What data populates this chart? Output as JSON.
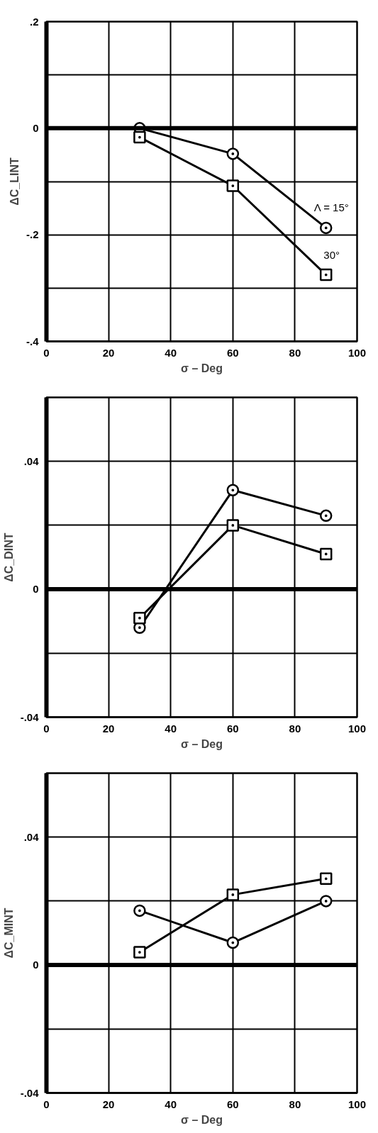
{
  "chart_data": [
    {
      "type": "line",
      "xlabel": "σ – Deg",
      "ylabel": "ΔC_LINT",
      "x": [
        30,
        60,
        90
      ],
      "xlim": [
        0,
        100
      ],
      "xticks": [
        0,
        20,
        40,
        60,
        80,
        100
      ],
      "ylim": [
        -0.4,
        0.2
      ],
      "yticks": [
        {
          "value": 0.2,
          "label": ".2"
        },
        {
          "value": 0.1,
          "label": null
        },
        0,
        {
          "value": -0.1,
          "label": null
        },
        {
          "value": -0.2,
          "label": "-.2"
        },
        {
          "value": -0.3,
          "label": null
        },
        {
          "value": -0.4,
          "label": "-.4"
        }
      ],
      "grid": true,
      "line_style": "solid",
      "series": [
        {
          "name": "Λ = 15°",
          "color": "#000000",
          "marker": "circle",
          "values": [
            0.0,
            -0.048,
            -0.187
          ]
        },
        {
          "name": "30°",
          "color": "#000000",
          "marker": "square",
          "values": [
            -0.017,
            -0.108,
            -0.275
          ]
        }
      ],
      "ref_lines": [
        {
          "axis": "y",
          "value": 0,
          "color": "#000000"
        }
      ]
    },
    {
      "type": "line",
      "xlabel": "σ – Deg",
      "ylabel": "ΔC_DINT",
      "x": [
        30,
        60,
        90
      ],
      "xlim": [
        0,
        100
      ],
      "xticks": [
        0,
        20,
        40,
        60,
        80,
        100
      ],
      "ylim": [
        -0.04,
        0.06
      ],
      "yticks": [
        {
          "value": 0.06,
          "label": null
        },
        {
          "value": 0.04,
          "label": ".04"
        },
        {
          "value": 0.02,
          "label": null
        },
        0,
        {
          "value": -0.02,
          "label": null
        },
        {
          "value": -0.04,
          "label": "-.04"
        }
      ],
      "grid": true,
      "line_style": "solid",
      "series": [
        {
          "color": "#000000",
          "marker": "circle",
          "values": [
            -0.012,
            0.031,
            0.023
          ]
        },
        {
          "color": "#000000",
          "marker": "square",
          "values": [
            -0.009,
            0.02,
            0.011
          ]
        }
      ],
      "ref_lines": [
        {
          "axis": "y",
          "value": 0,
          "color": "#000000"
        }
      ]
    },
    {
      "type": "line",
      "xlabel": "σ – Deg",
      "ylabel": "ΔC_MINT",
      "x": [
        30,
        60,
        90
      ],
      "xlim": [
        0,
        100
      ],
      "xticks": [
        0,
        20,
        40,
        60,
        80,
        100
      ],
      "ylim": [
        -0.04,
        0.06
      ],
      "yticks": [
        {
          "value": 0.06,
          "label": null
        },
        {
          "value": 0.04,
          "label": ".04"
        },
        {
          "value": 0.02,
          "label": null
        },
        0,
        {
          "value": -0.02,
          "label": null
        },
        {
          "value": -0.04,
          "label": "-.04"
        }
      ],
      "grid": true,
      "line_style": "solid",
      "series": [
        {
          "color": "#000000",
          "marker": "circle",
          "values": [
            0.017,
            0.007,
            0.02
          ]
        },
        {
          "color": "#000000",
          "marker": "square",
          "values": [
            0.004,
            0.022,
            0.027
          ]
        }
      ],
      "ref_lines": [
        {
          "axis": "y",
          "value": 0,
          "color": "#000000"
        }
      ]
    }
  ]
}
